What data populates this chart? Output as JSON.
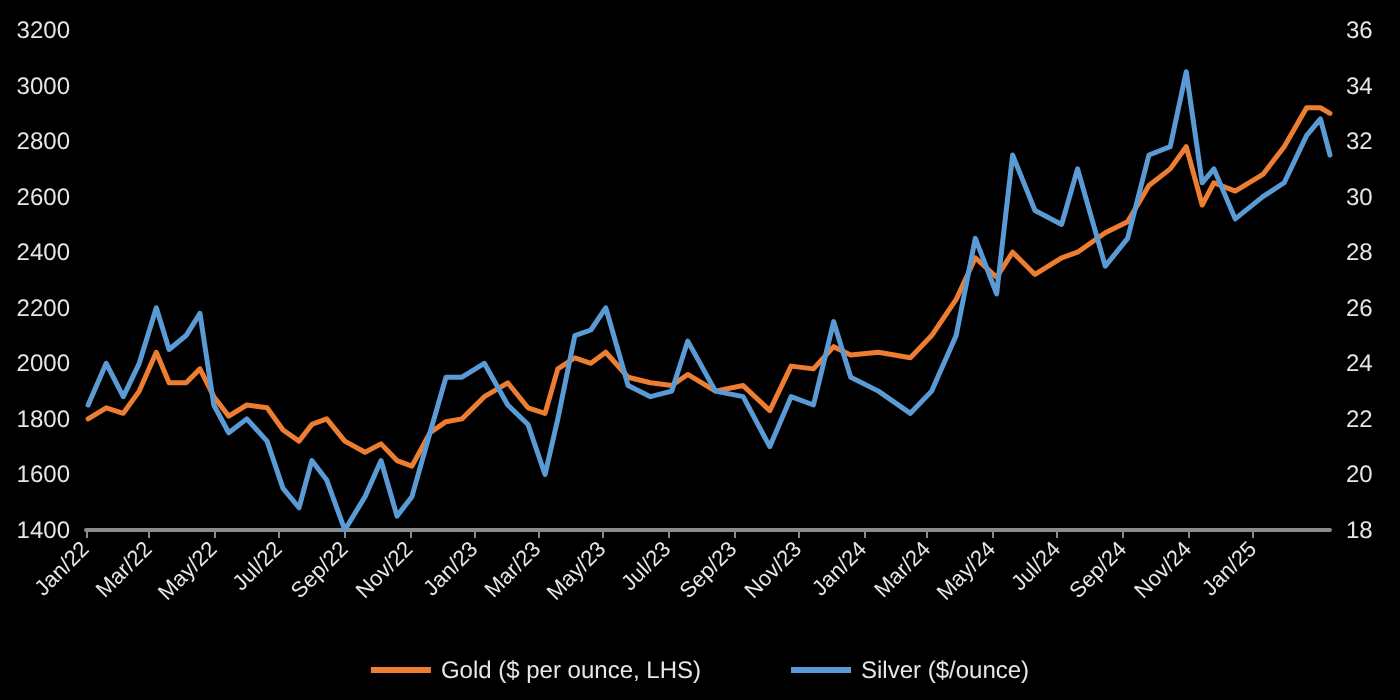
{
  "chart_data": {
    "type": "line",
    "xlim": [
      "2022-01-01",
      "2025-03-14"
    ],
    "xticks": [
      {
        "value": "2022-01-01",
        "label": "Jan/22"
      },
      {
        "value": "2022-03-01",
        "label": "Mar/22"
      },
      {
        "value": "2022-05-01",
        "label": "May/22"
      },
      {
        "value": "2022-07-01",
        "label": "Jul/22"
      },
      {
        "value": "2022-09-01",
        "label": "Sep/22"
      },
      {
        "value": "2022-11-01",
        "label": "Nov/22"
      },
      {
        "value": "2023-01-01",
        "label": "Jan/23"
      },
      {
        "value": "2023-03-01",
        "label": "Mar/23"
      },
      {
        "value": "2023-05-01",
        "label": "May/23"
      },
      {
        "value": "2023-07-01",
        "label": "Jul/23"
      },
      {
        "value": "2023-09-01",
        "label": "Sep/23"
      },
      {
        "value": "2023-11-01",
        "label": "Nov/23"
      },
      {
        "value": "2024-01-01",
        "label": "Jan/24"
      },
      {
        "value": "2024-03-01",
        "label": "Mar/24"
      },
      {
        "value": "2024-05-01",
        "label": "May/24"
      },
      {
        "value": "2024-07-01",
        "label": "Jul/24"
      },
      {
        "value": "2024-09-01",
        "label": "Sep/24"
      },
      {
        "value": "2024-11-01",
        "label": "Nov/24"
      },
      {
        "value": "2025-01-01",
        "label": "Jan/25"
      }
    ],
    "ylim": [
      1400,
      3200
    ],
    "yticks": [
      1400,
      1600,
      1800,
      2000,
      2200,
      2400,
      2600,
      2800,
      3000,
      3200
    ],
    "y2lim": [
      18,
      36
    ],
    "y2ticks": [
      18,
      20,
      22,
      24,
      26,
      28,
      30,
      32,
      34,
      36
    ],
    "grid": false,
    "legend": "bottom",
    "marker": "none",
    "line_style": "solid",
    "series": [
      {
        "name": "Gold ($ per ounce, LHS)",
        "color": "#ed7d31",
        "x": [
          "2022-01-03",
          "2022-01-20",
          "2022-02-05",
          "2022-02-20",
          "2022-03-08",
          "2022-03-20",
          "2022-04-05",
          "2022-04-18",
          "2022-05-01",
          "2022-05-15",
          "2022-06-01",
          "2022-06-20",
          "2022-07-05",
          "2022-07-20",
          "2022-08-01",
          "2022-08-15",
          "2022-09-01",
          "2022-09-20",
          "2022-10-05",
          "2022-10-20",
          "2022-11-03",
          "2022-11-20",
          "2022-12-05",
          "2022-12-20",
          "2023-01-10",
          "2023-02-01",
          "2023-02-20",
          "2023-03-08",
          "2023-03-20",
          "2023-04-05",
          "2023-04-20",
          "2023-05-04",
          "2023-05-25",
          "2023-06-15",
          "2023-07-05",
          "2023-07-20",
          "2023-08-15",
          "2023-09-10",
          "2023-10-05",
          "2023-10-25",
          "2023-11-15",
          "2023-12-04",
          "2023-12-20",
          "2024-01-15",
          "2024-02-14",
          "2024-03-05",
          "2024-03-28",
          "2024-04-15",
          "2024-05-05",
          "2024-05-20",
          "2024-06-10",
          "2024-07-05",
          "2024-07-20",
          "2024-08-15",
          "2024-09-05",
          "2024-09-25",
          "2024-10-15",
          "2024-10-30",
          "2024-11-14",
          "2024-11-25",
          "2024-12-15",
          "2025-01-10",
          "2025-01-30",
          "2025-02-20",
          "2025-03-05",
          "2025-03-14"
        ],
        "values": [
          1800,
          1840,
          1820,
          1900,
          2040,
          1930,
          1930,
          1980,
          1880,
          1810,
          1850,
          1840,
          1760,
          1720,
          1780,
          1800,
          1720,
          1680,
          1710,
          1650,
          1630,
          1750,
          1790,
          1800,
          1880,
          1930,
          1840,
          1820,
          1980,
          2020,
          2000,
          2040,
          1950,
          1930,
          1920,
          1960,
          1900,
          1920,
          1830,
          1990,
          1980,
          2060,
          2030,
          2040,
          2020,
          2100,
          2230,
          2380,
          2310,
          2400,
          2320,
          2380,
          2400,
          2470,
          2510,
          2640,
          2700,
          2780,
          2570,
          2650,
          2620,
          2680,
          2780,
          2920,
          2920,
          2900
        ]
      },
      {
        "name": "Silver ($/ounce)",
        "color": "#5b9bd5",
        "axis": "y2",
        "x": [
          "2022-01-03",
          "2022-01-20",
          "2022-02-05",
          "2022-02-20",
          "2022-03-08",
          "2022-03-20",
          "2022-04-05",
          "2022-04-18",
          "2022-05-01",
          "2022-05-15",
          "2022-06-01",
          "2022-06-20",
          "2022-07-05",
          "2022-07-20",
          "2022-08-01",
          "2022-08-15",
          "2022-09-01",
          "2022-09-20",
          "2022-10-05",
          "2022-10-20",
          "2022-11-03",
          "2022-11-20",
          "2022-12-05",
          "2022-12-20",
          "2023-01-10",
          "2023-02-01",
          "2023-02-20",
          "2023-03-08",
          "2023-03-20",
          "2023-04-05",
          "2023-04-20",
          "2023-05-04",
          "2023-05-25",
          "2023-06-15",
          "2023-07-05",
          "2023-07-20",
          "2023-08-15",
          "2023-09-10",
          "2023-10-05",
          "2023-10-25",
          "2023-11-15",
          "2023-12-04",
          "2023-12-20",
          "2024-01-15",
          "2024-02-14",
          "2024-03-05",
          "2024-03-28",
          "2024-04-15",
          "2024-05-05",
          "2024-05-20",
          "2024-06-10",
          "2024-07-05",
          "2024-07-20",
          "2024-08-15",
          "2024-09-05",
          "2024-09-25",
          "2024-10-15",
          "2024-10-30",
          "2024-11-14",
          "2024-11-25",
          "2024-12-15",
          "2025-01-10",
          "2025-01-30",
          "2025-02-20",
          "2025-03-05",
          "2025-03-14"
        ],
        "values": [
          22.5,
          24,
          22.8,
          24,
          26,
          24.5,
          25,
          25.8,
          22.5,
          21.5,
          22,
          21.2,
          19.5,
          18.8,
          20.5,
          19.8,
          18,
          19.2,
          20.5,
          18.5,
          19.2,
          21.5,
          23.5,
          23.5,
          24,
          22.5,
          21.8,
          20,
          22,
          25,
          25.2,
          26,
          23.2,
          22.8,
          23,
          24.8,
          23,
          22.8,
          21,
          22.8,
          22.5,
          25.5,
          23.5,
          23,
          22.2,
          23,
          25,
          28.5,
          26.5,
          31.5,
          29.5,
          29,
          31,
          27.5,
          28.5,
          31.5,
          31.8,
          34.5,
          30.5,
          31,
          29.2,
          30,
          30.5,
          32.2,
          32.8,
          31.5
        ]
      }
    ]
  }
}
